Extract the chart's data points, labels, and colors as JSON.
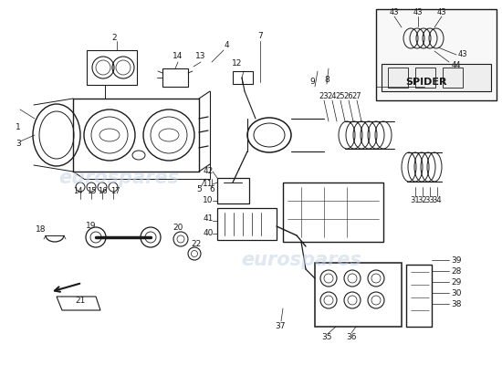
{
  "bg_color": "#ffffff",
  "line_color": "#1a1a1a",
  "watermark_color": "#c5d5e8",
  "spider_label": "SPIDER",
  "figsize": [
    5.5,
    4.0
  ],
  "dpi": 100
}
